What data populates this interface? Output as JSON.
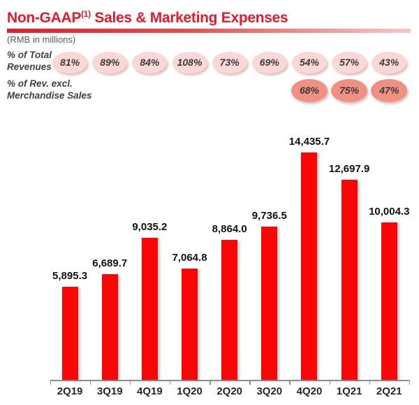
{
  "header": {
    "title_main": "Non-GAAP",
    "title_sup": "(1)",
    "title_rest": " Sales & Marketing Expenses",
    "subtitle": "(RMB in millions)"
  },
  "colors": {
    "accent_red": "#e8192c",
    "bar_red": "#f90606",
    "badge_light_pink": "#fad8d7",
    "badge_dark_salmon": "#f09082",
    "axis_gray": "#8c8c8c"
  },
  "chart_data": {
    "type": "bar",
    "title": "Non-GAAP(1) Sales & Marketing Expenses",
    "unit_note": "(RMB in millions)",
    "categories": [
      "2Q19",
      "3Q19",
      "4Q19",
      "1Q20",
      "2Q20",
      "3Q20",
      "4Q20",
      "1Q21",
      "2Q21"
    ],
    "values": [
      5895.3,
      6689.7,
      9035.2,
      7064.8,
      8864.0,
      9736.5,
      14435.7,
      12697.9,
      10004.3
    ],
    "value_labels": [
      "5,895.3",
      "6,689.7",
      "9,035.2",
      "7,064.8",
      "8,864.0",
      "9,736.5",
      "14,435.7",
      "12,697.9",
      "10,004.3"
    ],
    "xlabel": "",
    "ylabel": "",
    "ylim": [
      0,
      15000
    ],
    "grid": false,
    "legend": false,
    "bar_color": "#f90606",
    "annotation_rows": [
      {
        "label_line1": "% of Total",
        "label_line2": "Revenues",
        "style": "light",
        "start_col": 0,
        "values": [
          "81%",
          "89%",
          "84%",
          "108%",
          "73%",
          "69%",
          "54%",
          "57%",
          "43%"
        ]
      },
      {
        "label_line1": "% of Rev. excl.",
        "label_line2": "Merchandise Sales",
        "style": "dark",
        "start_col": 6,
        "values": [
          "68%",
          "75%",
          "47%"
        ]
      }
    ]
  }
}
